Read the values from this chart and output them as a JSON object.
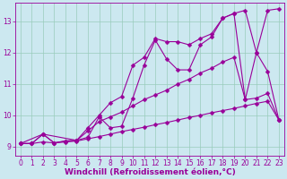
{
  "xlabel": "Windchill (Refroidissement éolien,°C)",
  "xlim": [
    -0.5,
    23.5
  ],
  "ylim": [
    8.7,
    13.6
  ],
  "xticks": [
    0,
    1,
    2,
    3,
    4,
    5,
    6,
    7,
    8,
    9,
    10,
    11,
    12,
    13,
    14,
    15,
    16,
    17,
    18,
    19,
    20,
    21,
    22,
    23
  ],
  "yticks": [
    9,
    10,
    11,
    12,
    13
  ],
  "background_color": "#cce8f0",
  "grid_color": "#99ccbb",
  "line_color": "#990099",
  "line1_x": [
    0,
    1,
    2,
    3,
    4,
    5,
    6,
    7,
    8,
    9,
    10,
    11,
    12,
    13,
    14,
    15,
    16,
    17,
    18,
    19,
    20,
    21,
    22,
    23
  ],
  "line1_y": [
    9.1,
    9.1,
    9.15,
    9.12,
    9.15,
    9.18,
    9.25,
    9.32,
    9.4,
    9.48,
    9.55,
    9.62,
    9.7,
    9.77,
    9.85,
    9.93,
    10.0,
    10.08,
    10.15,
    10.22,
    10.3,
    10.38,
    10.45,
    9.85
  ],
  "line2_x": [
    0,
    1,
    2,
    3,
    4,
    5,
    6,
    7,
    8,
    9,
    10,
    11,
    12,
    13,
    14,
    15,
    16,
    17,
    18,
    19,
    20,
    21,
    22,
    23
  ],
  "line2_y": [
    9.1,
    9.1,
    9.4,
    9.12,
    9.18,
    9.2,
    9.5,
    9.8,
    9.95,
    10.1,
    10.3,
    10.5,
    10.65,
    10.8,
    11.0,
    11.15,
    11.35,
    11.5,
    11.7,
    11.85,
    10.5,
    10.55,
    10.7,
    9.85
  ],
  "line3_x": [
    0,
    1,
    2,
    3,
    4,
    5,
    6,
    7,
    8,
    9,
    10,
    11,
    12,
    13,
    14,
    15,
    16,
    17,
    18,
    19,
    20,
    21,
    22,
    23
  ],
  "line3_y": [
    9.1,
    9.1,
    9.4,
    9.12,
    9.18,
    9.2,
    9.6,
    10.0,
    10.4,
    10.6,
    11.6,
    11.85,
    12.45,
    12.35,
    12.35,
    12.25,
    12.45,
    12.6,
    13.1,
    13.25,
    13.35,
    12.0,
    13.35,
    13.4
  ],
  "line4_x": [
    0,
    2,
    5,
    6,
    7,
    8,
    9,
    10,
    11,
    12,
    13,
    14,
    15,
    16,
    17,
    18,
    19,
    20,
    21,
    22,
    23
  ],
  "line4_y": [
    9.1,
    9.4,
    9.2,
    9.3,
    9.95,
    9.6,
    9.65,
    10.55,
    11.6,
    12.4,
    11.8,
    11.45,
    11.45,
    12.25,
    12.5,
    13.1,
    13.25,
    10.5,
    12.0,
    11.4,
    9.85
  ],
  "marker": "D",
  "marker_size": 2.5,
  "line_width": 0.8,
  "font_size": 6.5,
  "tick_font_size": 5.5
}
